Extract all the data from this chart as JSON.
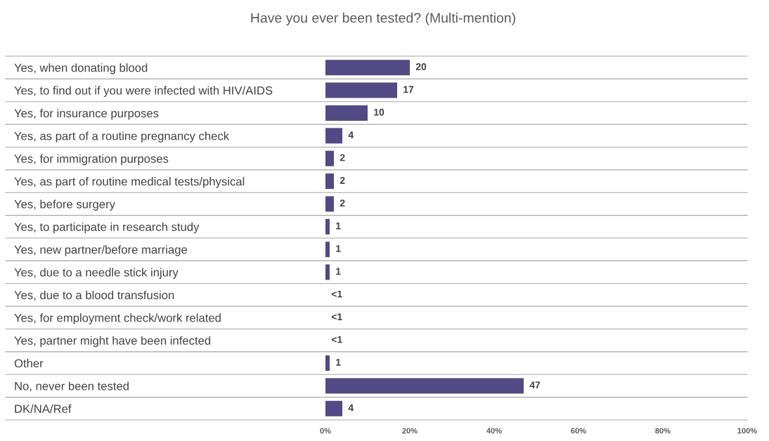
{
  "chart_data": {
    "type": "bar",
    "orientation": "horizontal",
    "title": "Have you ever been tested? (Multi-mention)",
    "categories": [
      "Yes, when donating blood",
      "Yes, to find out if you were infected with HIV/AIDS",
      "Yes, for insurance purposes",
      "Yes, as part of a routine pregnancy check",
      "Yes, for immigration purposes",
      "Yes, as part of routine medical tests/physical",
      "Yes, before surgery",
      "Yes, to participate in research study",
      "Yes, new partner/before marriage",
      "Yes, due to a needle stick injury",
      "Yes, due to a blood transfusion",
      "Yes, for employment check/work related",
      "Yes, partner might have been infected",
      "Other",
      "No, never been tested",
      "DK/NA/Ref"
    ],
    "values": [
      20,
      17,
      10,
      4,
      2,
      2,
      2,
      1,
      1,
      1,
      0,
      0,
      0,
      1,
      47,
      4
    ],
    "value_labels": [
      "20",
      "17",
      "10",
      "4",
      "2",
      "2",
      "2",
      "1",
      "1",
      "1",
      "<1",
      "<1",
      "<1",
      "1",
      "47",
      "4"
    ],
    "color": "#524a84",
    "xlim": [
      0,
      100
    ],
    "xticks": [
      {
        "value": 0,
        "label": "0%"
      },
      {
        "value": 20,
        "label": "20%"
      },
      {
        "value": 40,
        "label": "40%"
      },
      {
        "value": 60,
        "label": "60%"
      },
      {
        "value": 80,
        "label": "80%"
      },
      {
        "value": 100,
        "label": "100%"
      }
    ],
    "grid": false,
    "legend": false
  }
}
